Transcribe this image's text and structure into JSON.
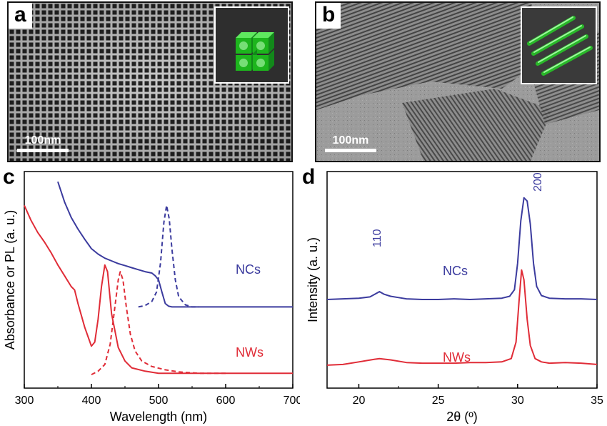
{
  "panels": {
    "a": {
      "letter": "a",
      "scale_bar": "100nm"
    },
    "b": {
      "letter": "b",
      "scale_bar": "100nm"
    },
    "c": {
      "letter": "c"
    },
    "d": {
      "letter": "d"
    }
  },
  "colors": {
    "ncs": "#3b3b9e",
    "nws": "#e02c37"
  },
  "chart_data": [
    {
      "type": "line",
      "panel": "c",
      "xlabel": "Wavelength (nm)",
      "ylabel": "Absorbance or PL (a. u.)",
      "xlim": [
        300,
        700
      ],
      "xticks": [
        300,
        400,
        500,
        600,
        700
      ],
      "yticks": [],
      "series_labels": [
        "NCs",
        "NWs"
      ],
      "series": [
        {
          "style": "solid",
          "group": "NCs",
          "color": "#3b3b9e",
          "points": [
            [
              350,
              2.85
            ],
            [
              360,
              2.55
            ],
            [
              370,
              2.32
            ],
            [
              380,
              2.15
            ],
            [
              390,
              2.0
            ],
            [
              400,
              1.86
            ],
            [
              410,
              1.78
            ],
            [
              420,
              1.72
            ],
            [
              430,
              1.68
            ],
            [
              440,
              1.64
            ],
            [
              450,
              1.61
            ],
            [
              460,
              1.58
            ],
            [
              470,
              1.55
            ],
            [
              480,
              1.52
            ],
            [
              490,
              1.5
            ],
            [
              495,
              1.46
            ],
            [
              500,
              1.4
            ],
            [
              505,
              1.22
            ],
            [
              510,
              1.05
            ],
            [
              515,
              1.01
            ],
            [
              520,
              1.0
            ],
            [
              540,
              1.0
            ],
            [
              600,
              1.0
            ],
            [
              700,
              1.0
            ]
          ]
        },
        {
          "style": "dashed",
          "group": "NCs",
          "color": "#3b3b9e",
          "points": [
            [
              470,
              1.0
            ],
            [
              480,
              1.02
            ],
            [
              490,
              1.08
            ],
            [
              497,
              1.22
            ],
            [
              503,
              1.65
            ],
            [
              508,
              2.25
            ],
            [
              512,
              2.5
            ],
            [
              516,
              2.3
            ],
            [
              520,
              1.85
            ],
            [
              525,
              1.4
            ],
            [
              530,
              1.15
            ],
            [
              540,
              1.03
            ],
            [
              550,
              1.0
            ],
            [
              560,
              1.0
            ]
          ]
        },
        {
          "style": "solid",
          "group": "NWs",
          "color": "#e02c37",
          "points": [
            [
              300,
              2.5
            ],
            [
              310,
              2.28
            ],
            [
              320,
              2.1
            ],
            [
              330,
              1.96
            ],
            [
              340,
              1.8
            ],
            [
              350,
              1.62
            ],
            [
              360,
              1.46
            ],
            [
              370,
              1.3
            ],
            [
              375,
              1.25
            ],
            [
              380,
              1.05
            ],
            [
              390,
              0.7
            ],
            [
              400,
              0.42
            ],
            [
              405,
              0.48
            ],
            [
              410,
              0.82
            ],
            [
              415,
              1.3
            ],
            [
              420,
              1.62
            ],
            [
              424,
              1.52
            ],
            [
              430,
              0.9
            ],
            [
              440,
              0.4
            ],
            [
              450,
              0.2
            ],
            [
              460,
              0.1
            ],
            [
              480,
              0.05
            ],
            [
              500,
              0.02
            ],
            [
              550,
              0.02
            ],
            [
              700,
              0.02
            ]
          ]
        },
        {
          "style": "dashed",
          "group": "NWs",
          "color": "#e02c37",
          "points": [
            [
              400,
              0.0
            ],
            [
              410,
              0.05
            ],
            [
              420,
              0.15
            ],
            [
              428,
              0.45
            ],
            [
              435,
              1.0
            ],
            [
              440,
              1.4
            ],
            [
              443,
              1.52
            ],
            [
              447,
              1.4
            ],
            [
              452,
              1.0
            ],
            [
              458,
              0.6
            ],
            [
              465,
              0.35
            ],
            [
              475,
              0.2
            ],
            [
              490,
              0.12
            ],
            [
              510,
              0.07
            ],
            [
              530,
              0.04
            ],
            [
              560,
              0.02
            ],
            [
              600,
              0.02
            ]
          ]
        }
      ]
    },
    {
      "type": "line",
      "panel": "d",
      "xlabel": "2θ (º)",
      "ylabel": "Intensity (a. u.)",
      "xlim": [
        18,
        35
      ],
      "xticks": [
        20,
        25,
        30,
        35
      ],
      "yticks": [],
      "series_labels": [
        "NCs",
        "NWs"
      ],
      "peak_labels": [
        "110",
        "200"
      ],
      "series": [
        {
          "style": "solid",
          "group": "NCs",
          "color": "#3b3b9e",
          "points": [
            [
              18,
              1.0
            ],
            [
              19,
              1.01
            ],
            [
              20,
              1.02
            ],
            [
              20.7,
              1.04
            ],
            [
              21.0,
              1.08
            ],
            [
              21.3,
              1.12
            ],
            [
              21.6,
              1.08
            ],
            [
              22.0,
              1.05
            ],
            [
              22.5,
              1.03
            ],
            [
              23,
              1.01
            ],
            [
              24,
              1.0
            ],
            [
              25,
              1.0
            ],
            [
              26,
              1.01
            ],
            [
              27,
              1.0
            ],
            [
              28,
              1.01
            ],
            [
              29,
              1.02
            ],
            [
              29.5,
              1.05
            ],
            [
              29.8,
              1.15
            ],
            [
              30.0,
              1.55
            ],
            [
              30.2,
              2.2
            ],
            [
              30.4,
              2.55
            ],
            [
              30.6,
              2.5
            ],
            [
              30.8,
              2.15
            ],
            [
              31.0,
              1.55
            ],
            [
              31.2,
              1.2
            ],
            [
              31.5,
              1.06
            ],
            [
              32,
              1.02
            ],
            [
              33,
              1.01
            ],
            [
              34,
              1.01
            ],
            [
              35,
              1.0
            ]
          ]
        },
        {
          "style": "solid",
          "group": "NWs",
          "color": "#e02c37",
          "points": [
            [
              18,
              0.0
            ],
            [
              19,
              0.01
            ],
            [
              20,
              0.05
            ],
            [
              21,
              0.09
            ],
            [
              21.3,
              0.1
            ],
            [
              22,
              0.08
            ],
            [
              23,
              0.04
            ],
            [
              24,
              0.03
            ],
            [
              25,
              0.03
            ],
            [
              26,
              0.03
            ],
            [
              27,
              0.04
            ],
            [
              28,
              0.04
            ],
            [
              29,
              0.05
            ],
            [
              29.6,
              0.1
            ],
            [
              29.9,
              0.35
            ],
            [
              30.1,
              1.0
            ],
            [
              30.25,
              1.45
            ],
            [
              30.4,
              1.3
            ],
            [
              30.6,
              0.7
            ],
            [
              30.8,
              0.3
            ],
            [
              31.1,
              0.1
            ],
            [
              31.5,
              0.05
            ],
            [
              32,
              0.03
            ],
            [
              33,
              0.04
            ],
            [
              34,
              0.03
            ],
            [
              35,
              0.01
            ]
          ]
        }
      ]
    }
  ]
}
